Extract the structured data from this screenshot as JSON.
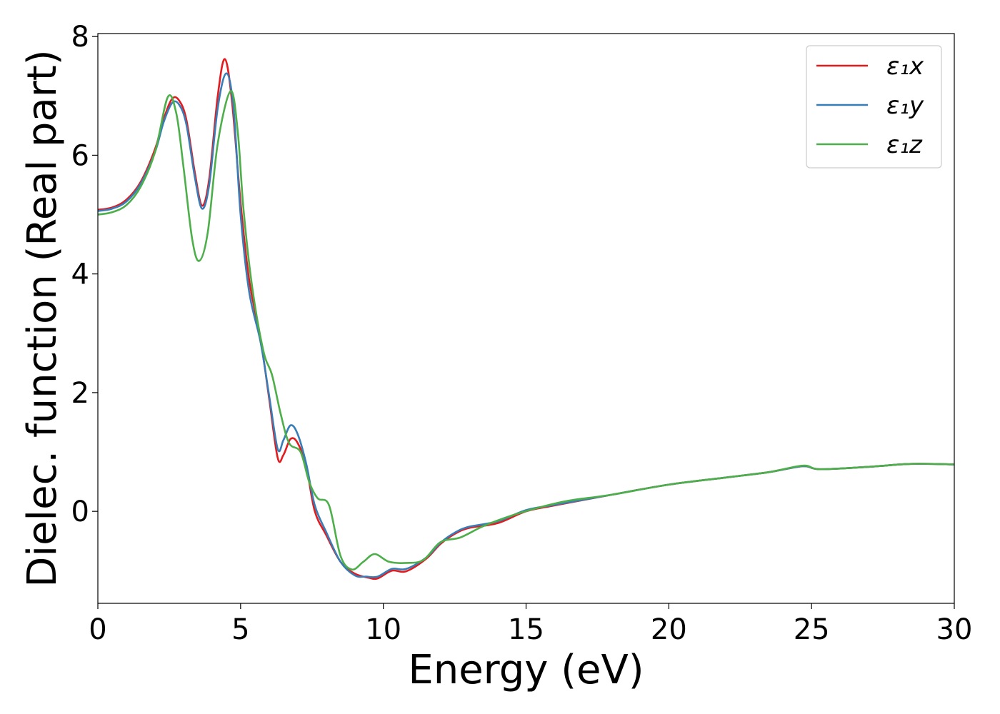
{
  "chart_data": {
    "type": "line",
    "title": "",
    "xlabel": "Energy (eV)",
    "ylabel": "Dielec. function (Real part)",
    "xlim": [
      0,
      30
    ],
    "ylim": [
      -1.55,
      8.05
    ],
    "xticks": [
      0,
      5,
      10,
      15,
      20,
      25,
      30
    ],
    "yticks": [
      0,
      2,
      4,
      6,
      8
    ],
    "grid": false,
    "legend_position": "top-right",
    "series": [
      {
        "name": "ε₁x",
        "color": "#e41a1c",
        "points": [
          [
            0.0,
            5.08
          ],
          [
            0.5,
            5.12
          ],
          [
            1.0,
            5.25
          ],
          [
            1.5,
            5.55
          ],
          [
            2.0,
            6.1
          ],
          [
            2.3,
            6.6
          ],
          [
            2.6,
            6.95
          ],
          [
            2.85,
            6.92
          ],
          [
            3.1,
            6.6
          ],
          [
            3.4,
            5.7
          ],
          [
            3.65,
            5.15
          ],
          [
            3.9,
            5.6
          ],
          [
            4.2,
            7.0
          ],
          [
            4.45,
            7.62
          ],
          [
            4.7,
            6.9
          ],
          [
            5.0,
            5.2
          ],
          [
            5.3,
            3.9
          ],
          [
            5.7,
            2.9
          ],
          [
            6.0,
            1.9
          ],
          [
            6.3,
            0.9
          ],
          [
            6.5,
            0.95
          ],
          [
            6.75,
            1.22
          ],
          [
            7.0,
            1.15
          ],
          [
            7.3,
            0.75
          ],
          [
            7.6,
            0.0
          ],
          [
            8.0,
            -0.4
          ],
          [
            8.5,
            -0.85
          ],
          [
            9.0,
            -1.05
          ],
          [
            9.5,
            -1.12
          ],
          [
            9.8,
            -1.13
          ],
          [
            10.3,
            -1.0
          ],
          [
            10.8,
            -1.01
          ],
          [
            11.5,
            -0.8
          ],
          [
            12.0,
            -0.55
          ],
          [
            12.5,
            -0.38
          ],
          [
            13.0,
            -0.28
          ],
          [
            14.0,
            -0.2
          ],
          [
            15.0,
            0.0
          ],
          [
            16.0,
            0.1
          ],
          [
            18.0,
            0.28
          ],
          [
            20.0,
            0.45
          ],
          [
            22.0,
            0.57
          ],
          [
            23.5,
            0.66
          ],
          [
            24.7,
            0.76
          ],
          [
            25.3,
            0.71
          ],
          [
            27.0,
            0.75
          ],
          [
            28.5,
            0.8
          ],
          [
            30.0,
            0.79
          ]
        ]
      },
      {
        "name": "ε₁y",
        "color": "#377eb8",
        "points": [
          [
            0.0,
            5.06
          ],
          [
            0.5,
            5.1
          ],
          [
            1.0,
            5.22
          ],
          [
            1.5,
            5.52
          ],
          [
            2.0,
            6.05
          ],
          [
            2.3,
            6.55
          ],
          [
            2.6,
            6.88
          ],
          [
            2.85,
            6.85
          ],
          [
            3.1,
            6.52
          ],
          [
            3.4,
            5.62
          ],
          [
            3.65,
            5.1
          ],
          [
            3.9,
            5.5
          ],
          [
            4.2,
            6.8
          ],
          [
            4.5,
            7.38
          ],
          [
            4.75,
            6.8
          ],
          [
            5.0,
            5.0
          ],
          [
            5.3,
            3.7
          ],
          [
            5.7,
            2.85
          ],
          [
            6.0,
            1.95
          ],
          [
            6.3,
            1.05
          ],
          [
            6.5,
            1.2
          ],
          [
            6.75,
            1.45
          ],
          [
            7.0,
            1.3
          ],
          [
            7.3,
            0.8
          ],
          [
            7.6,
            0.1
          ],
          [
            8.0,
            -0.35
          ],
          [
            8.5,
            -0.85
          ],
          [
            9.0,
            -1.08
          ],
          [
            9.4,
            -1.1
          ],
          [
            9.8,
            -1.1
          ],
          [
            10.3,
            -0.97
          ],
          [
            10.8,
            -0.97
          ],
          [
            11.5,
            -0.78
          ],
          [
            12.0,
            -0.53
          ],
          [
            12.5,
            -0.36
          ],
          [
            13.0,
            -0.26
          ],
          [
            14.0,
            -0.17
          ],
          [
            15.0,
            0.02
          ],
          [
            16.0,
            0.11
          ],
          [
            18.0,
            0.28
          ],
          [
            20.0,
            0.45
          ],
          [
            22.0,
            0.57
          ],
          [
            23.5,
            0.66
          ],
          [
            24.7,
            0.76
          ],
          [
            25.3,
            0.71
          ],
          [
            27.0,
            0.75
          ],
          [
            28.5,
            0.8
          ],
          [
            30.0,
            0.79
          ]
        ]
      },
      {
        "name": "ε₁z",
        "color": "#4daf4a",
        "points": [
          [
            0.0,
            5.0
          ],
          [
            0.5,
            5.04
          ],
          [
            1.0,
            5.16
          ],
          [
            1.5,
            5.47
          ],
          [
            2.0,
            6.05
          ],
          [
            2.45,
            6.98
          ],
          [
            2.75,
            6.7
          ],
          [
            3.0,
            5.8
          ],
          [
            3.3,
            4.6
          ],
          [
            3.55,
            4.22
          ],
          [
            3.85,
            4.7
          ],
          [
            4.2,
            6.2
          ],
          [
            4.65,
            7.08
          ],
          [
            4.9,
            6.4
          ],
          [
            5.1,
            5.1
          ],
          [
            5.4,
            3.8
          ],
          [
            5.8,
            2.7
          ],
          [
            6.1,
            2.3
          ],
          [
            6.4,
            1.65
          ],
          [
            6.7,
            1.15
          ],
          [
            7.1,
            1.0
          ],
          [
            7.4,
            0.5
          ],
          [
            7.7,
            0.22
          ],
          [
            8.1,
            0.1
          ],
          [
            8.5,
            -0.75
          ],
          [
            8.9,
            -0.98
          ],
          [
            9.3,
            -0.85
          ],
          [
            9.7,
            -0.72
          ],
          [
            10.2,
            -0.85
          ],
          [
            10.8,
            -0.87
          ],
          [
            11.4,
            -0.82
          ],
          [
            12.0,
            -0.52
          ],
          [
            12.7,
            -0.44
          ],
          [
            13.5,
            -0.25
          ],
          [
            14.5,
            -0.07
          ],
          [
            15.5,
            0.07
          ],
          [
            16.5,
            0.18
          ],
          [
            18.0,
            0.28
          ],
          [
            20.0,
            0.45
          ],
          [
            22.0,
            0.57
          ],
          [
            23.5,
            0.66
          ],
          [
            24.7,
            0.77
          ],
          [
            25.3,
            0.71
          ],
          [
            27.0,
            0.75
          ],
          [
            28.5,
            0.8
          ],
          [
            30.0,
            0.79
          ]
        ]
      }
    ]
  }
}
